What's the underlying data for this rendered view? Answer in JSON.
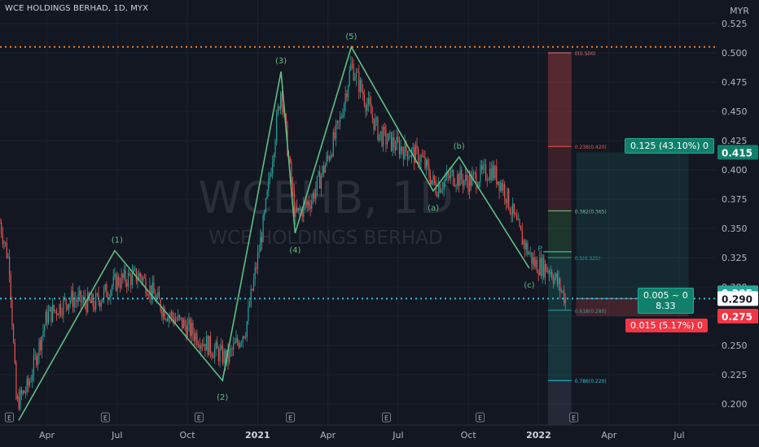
{
  "header": {
    "symbol_line": "WCE HOLDINGS BERHAD, 1D, MYX"
  },
  "watermark": {
    "line1": "WCEHB, 1D",
    "line2": "WCE HOLDINGS BERHAD"
  },
  "currency": "MYR",
  "colors": {
    "background": "#131722",
    "grid": "#1e222d",
    "up": "#26a69a",
    "down": "#ef5350",
    "wave": "#5fbf83",
    "dotted_orange": "#f57c1f",
    "dotted_teal": "#26c6da",
    "axis_text": "#b2b5be"
  },
  "chart_data": {
    "type": "candlestick",
    "title": "WCE HOLDINGS BERHAD, 1D, MYX",
    "xlabel": "",
    "ylabel": "MYR",
    "ylim": [
      0.19,
      0.53
    ],
    "y_ticks": [
      "0.525",
      "0.500",
      "0.475",
      "0.450",
      "0.425",
      "0.400",
      "0.375",
      "0.350",
      "0.325",
      "0.300",
      "0.275",
      "0.250",
      "0.225",
      "0.200"
    ],
    "x_ticks": [
      "Apr",
      "Jul",
      "Oct",
      "2021",
      "Apr",
      "Jul",
      "Oct",
      "2022",
      "Apr",
      "Jul"
    ],
    "x_tick_months": [
      3,
      6,
      9,
      12,
      15,
      18,
      21,
      24,
      27,
      30
    ],
    "data_start_month": 1.0,
    "data_end_month": 25.2,
    "bold_ticks": [
      "2021",
      "2022"
    ],
    "earnings_markers_months": [
      1.4,
      5.5,
      9.5,
      13.4,
      17.5,
      21.5,
      25.5
    ],
    "earnings_label": "E",
    "elliott_waves": [
      {
        "label": "(1)",
        "month": 6.0,
        "price": 0.331
      },
      {
        "label": "(2)",
        "month": 10.5,
        "price": 0.22
      },
      {
        "label": "(3)",
        "month": 13.0,
        "price": 0.484
      },
      {
        "label": "(4)",
        "month": 13.6,
        "price": 0.346
      },
      {
        "label": "(5)",
        "month": 16.0,
        "price": 0.505
      },
      {
        "label": "(a)",
        "month": 19.5,
        "price": 0.382
      },
      {
        "label": "(b)",
        "month": 20.6,
        "price": 0.411
      },
      {
        "label": "(c)",
        "month": 23.6,
        "price": 0.316
      }
    ],
    "wave_path": [
      {
        "month": 1.8,
        "price": 0.186
      },
      {
        "month": 5.9,
        "price": 0.331
      },
      {
        "month": 10.5,
        "price": 0.22
      },
      {
        "month": 13.0,
        "price": 0.484
      },
      {
        "month": 13.6,
        "price": 0.346
      },
      {
        "month": 16.0,
        "price": 0.505
      },
      {
        "month": 19.5,
        "price": 0.382
      },
      {
        "month": 20.6,
        "price": 0.411
      },
      {
        "month": 23.6,
        "price": 0.316
      }
    ],
    "fib_levels": [
      {
        "label": "0(0.500)",
        "price": 0.5,
        "color": "#e57373"
      },
      {
        "label": "0.236(0.420)",
        "price": 0.42,
        "color": "#ef5350"
      },
      {
        "label": "0.382(0.365)",
        "price": 0.365,
        "color": "#81c784"
      },
      {
        "label": "0.5(0.325)",
        "price": 0.325,
        "color": "#26a69a"
      },
      {
        "label": "0.618(0.280)",
        "price": 0.28,
        "color": "#26a69a"
      },
      {
        "label": "0.786(0.220)",
        "price": 0.22,
        "color": "#26c6da"
      }
    ],
    "dotted_lines": [
      {
        "price": 0.505,
        "color": "orange"
      },
      {
        "price": 0.29,
        "color": "teal"
      }
    ],
    "p_marker": {
      "label": "P",
      "month": 24.2,
      "price": 0.33
    },
    "position": {
      "entry": 0.29,
      "target": 0.415,
      "stop": 0.275,
      "start_month": 25.6,
      "end_month": 30.4,
      "target_label": "0.125 (43.10%) 0",
      "stop_label": "0.015 (5.17%) 0",
      "center_line1": "0.005 ~ 0",
      "center_line2": "8.33"
    },
    "price_badges": [
      {
        "value": "0.415",
        "price": 0.415,
        "kind": "target"
      },
      {
        "value": "0.295",
        "price": 0.295,
        "kind": "up"
      },
      {
        "value": "0.290",
        "price": 0.29,
        "kind": "current"
      },
      {
        "value": "0.275",
        "price": 0.275,
        "kind": "stop"
      }
    ],
    "anchors": [
      {
        "month": 1.0,
        "price": 0.355
      },
      {
        "month": 1.4,
        "price": 0.32
      },
      {
        "month": 1.7,
        "price": 0.2
      },
      {
        "month": 2.2,
        "price": 0.215
      },
      {
        "month": 3.0,
        "price": 0.275
      },
      {
        "month": 4.0,
        "price": 0.29
      },
      {
        "month": 5.0,
        "price": 0.285
      },
      {
        "month": 6.0,
        "price": 0.305
      },
      {
        "month": 7.0,
        "price": 0.31
      },
      {
        "month": 8.0,
        "price": 0.28
      },
      {
        "month": 9.0,
        "price": 0.265
      },
      {
        "month": 10.0,
        "price": 0.248
      },
      {
        "month": 10.7,
        "price": 0.238
      },
      {
        "month": 11.5,
        "price": 0.265
      },
      {
        "month": 12.3,
        "price": 0.36
      },
      {
        "month": 13.0,
        "price": 0.47
      },
      {
        "month": 13.6,
        "price": 0.36
      },
      {
        "month": 14.3,
        "price": 0.375
      },
      {
        "month": 15.0,
        "price": 0.41
      },
      {
        "month": 15.5,
        "price": 0.44
      },
      {
        "month": 16.0,
        "price": 0.49
      },
      {
        "month": 16.5,
        "price": 0.465
      },
      {
        "month": 17.2,
        "price": 0.43
      },
      {
        "month": 18.0,
        "price": 0.42
      },
      {
        "month": 19.0,
        "price": 0.41
      },
      {
        "month": 19.6,
        "price": 0.385
      },
      {
        "month": 20.3,
        "price": 0.395
      },
      {
        "month": 21.0,
        "price": 0.39
      },
      {
        "month": 22.0,
        "price": 0.4
      },
      {
        "month": 22.5,
        "price": 0.385
      },
      {
        "month": 23.2,
        "price": 0.345
      },
      {
        "month": 23.8,
        "price": 0.32
      },
      {
        "month": 24.5,
        "price": 0.315
      },
      {
        "month": 25.2,
        "price": 0.288
      }
    ]
  }
}
